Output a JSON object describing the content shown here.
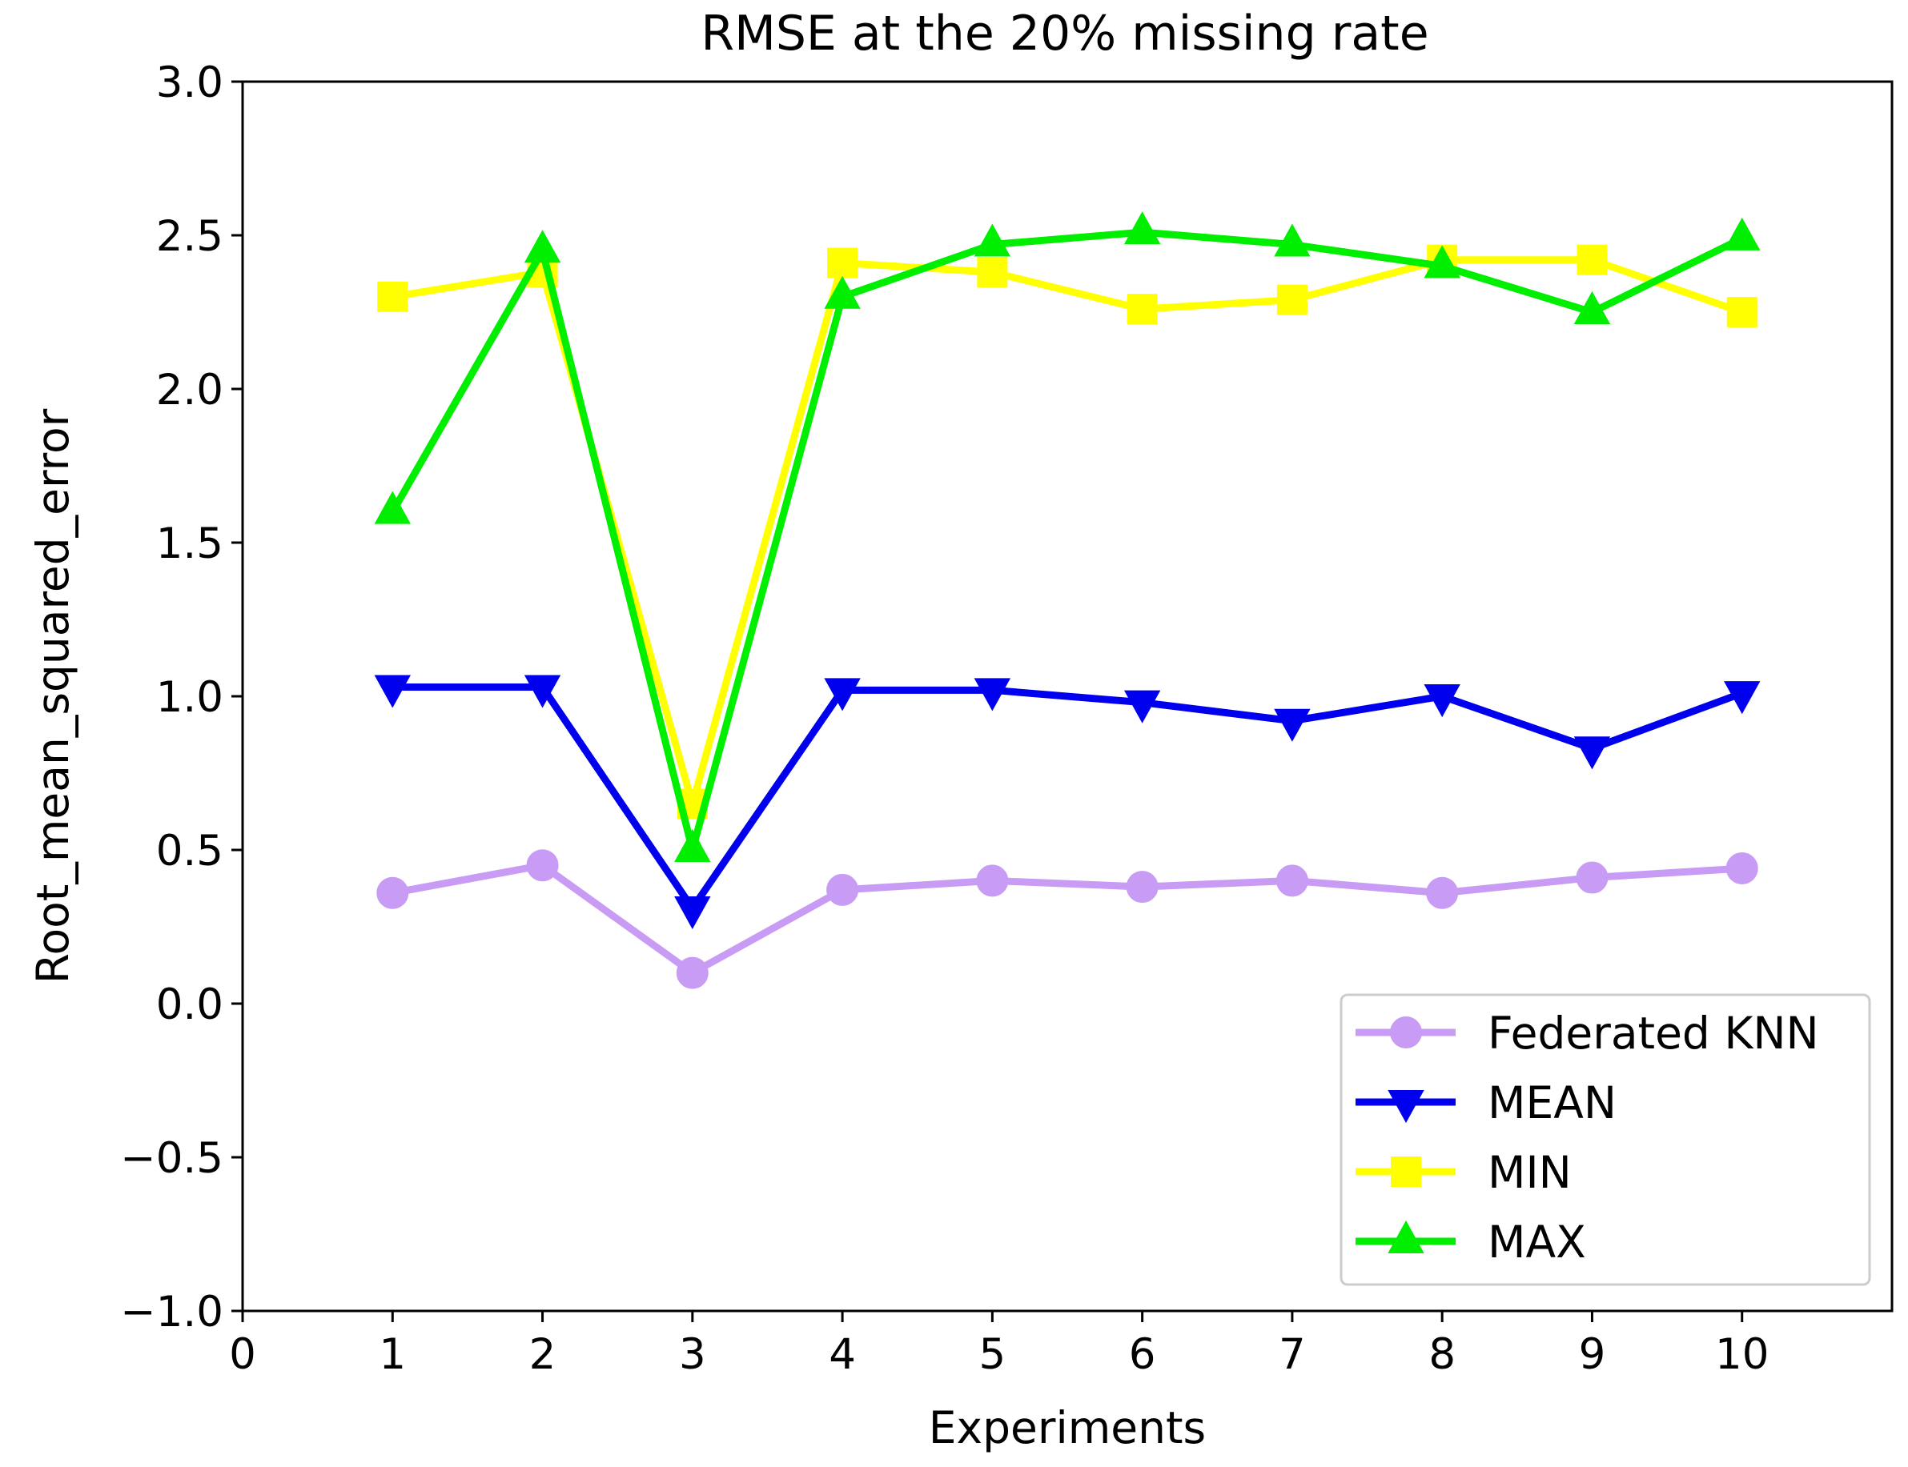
{
  "chart_data": {
    "type": "line",
    "title": "RMSE at the 20% missing rate",
    "xlabel": "Experiments",
    "ylabel": "Root_mean_squared_error",
    "xlim": [
      0,
      11
    ],
    "ylim": [
      -1.0,
      3.0
    ],
    "x_ticks": [
      0,
      1,
      2,
      3,
      4,
      5,
      6,
      7,
      8,
      9,
      10
    ],
    "x_tick_labels": [
      "0",
      "1",
      "2",
      "3",
      "4",
      "5",
      "6",
      "7",
      "8",
      "9",
      "10"
    ],
    "y_ticks": [
      -1.0,
      -0.5,
      0.0,
      0.5,
      1.0,
      1.5,
      2.0,
      2.5,
      3.0
    ],
    "y_tick_labels": [
      "−1.0",
      "−0.5",
      "0.0",
      "0.5",
      "1.0",
      "1.5",
      "2.0",
      "2.5",
      "3.0"
    ],
    "grid": false,
    "legend_position": "lower-right",
    "x": [
      1,
      2,
      3,
      4,
      5,
      6,
      7,
      8,
      9,
      10
    ],
    "series": [
      {
        "name": "Federated KNN",
        "color": "#c89bf5",
        "marker": "circle",
        "values": [
          0.36,
          0.45,
          0.1,
          0.37,
          0.4,
          0.38,
          0.4,
          0.36,
          0.41,
          0.44
        ]
      },
      {
        "name": "MEAN",
        "color": "#0000ee",
        "marker": "triangle-down",
        "values": [
          1.03,
          1.03,
          0.31,
          1.02,
          1.02,
          0.98,
          0.92,
          1.0,
          0.83,
          1.01
        ]
      },
      {
        "name": "MIN",
        "color": "#ffff00",
        "marker": "square",
        "values": [
          2.3,
          2.38,
          0.65,
          2.41,
          2.38,
          2.26,
          2.29,
          2.42,
          2.42,
          2.25
        ]
      },
      {
        "name": "MAX",
        "color": "#00ee00",
        "marker": "triangle-up",
        "values": [
          1.6,
          2.45,
          0.5,
          2.3,
          2.47,
          2.51,
          2.47,
          2.4,
          2.25,
          2.49
        ]
      }
    ]
  }
}
